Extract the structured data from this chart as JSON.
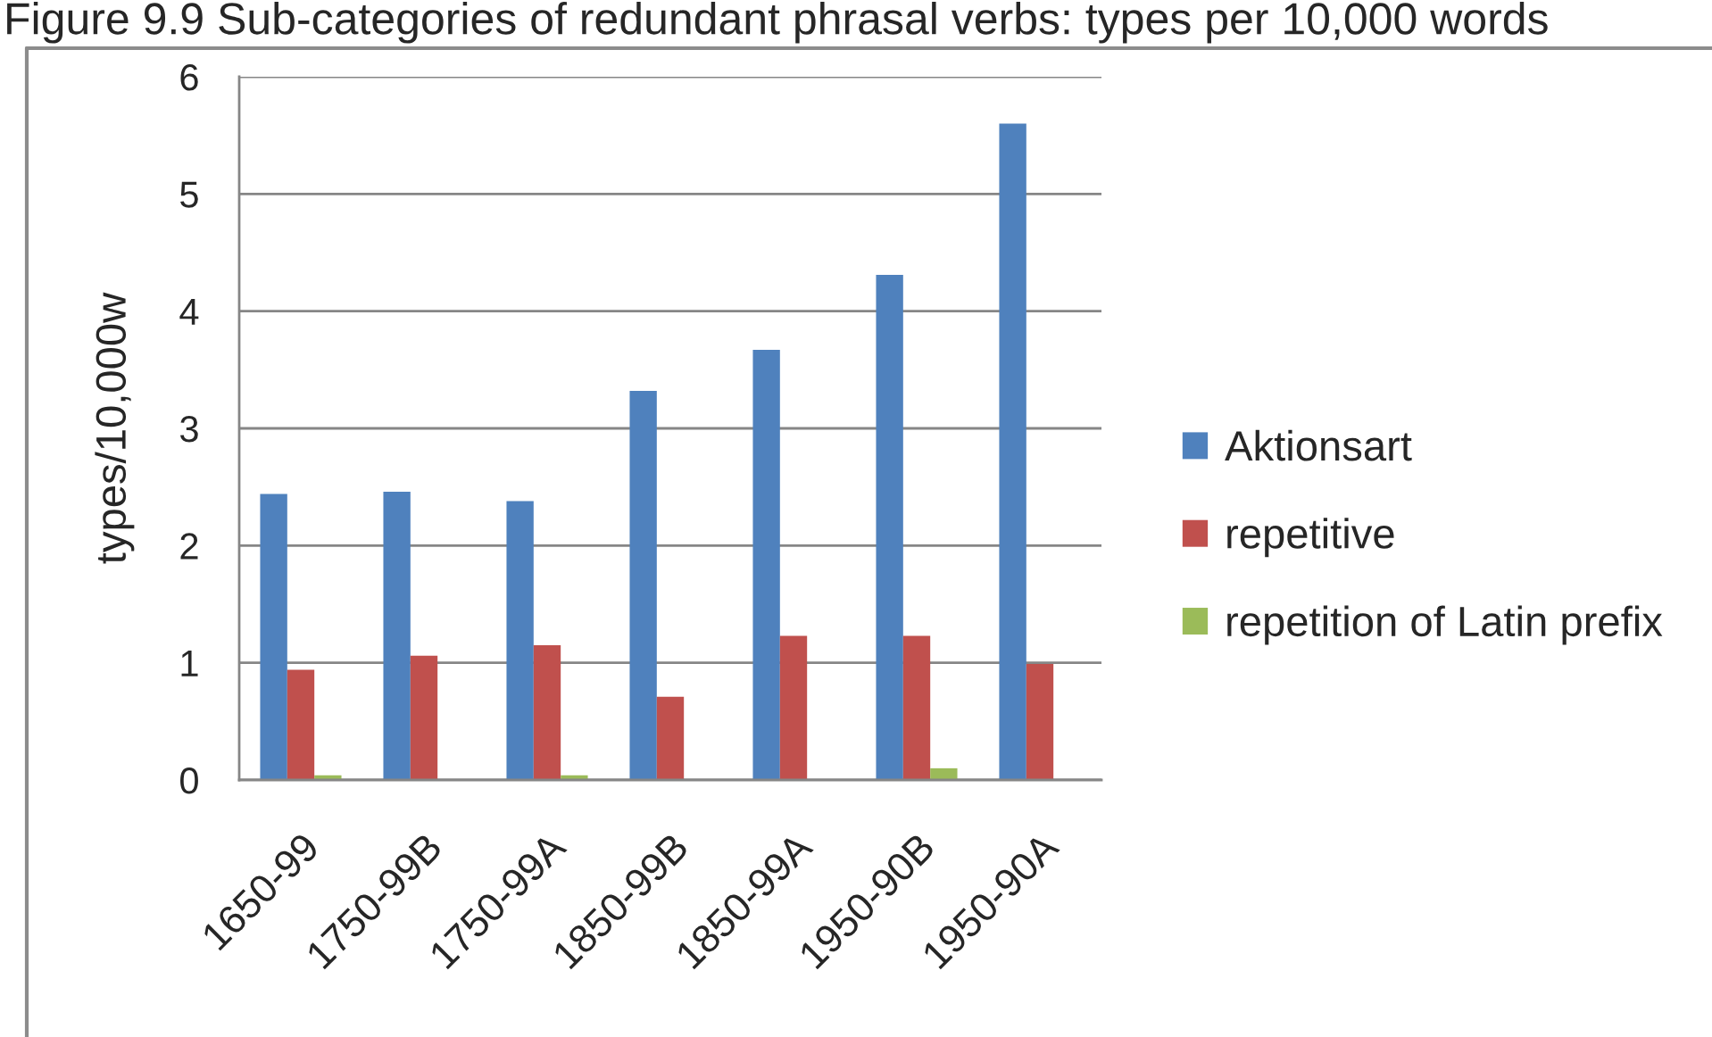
{
  "chart_data": {
    "type": "bar",
    "title": "Figure 9.9 Sub-categories of redundant phrasal verbs: types per 10,000 words",
    "ylabel": "types/10,000w",
    "categories": [
      "1650-99",
      "1750-99B",
      "1750-99A",
      "1850-99B",
      "1850-99A",
      "1950-90B",
      "1950-90A"
    ],
    "series": [
      {
        "name": "Aktionsart",
        "color": "#4f81bd",
        "values": [
          2.44,
          2.46,
          2.38,
          3.32,
          3.67,
          4.31,
          5.6
        ]
      },
      {
        "name": "repetitive",
        "color": "#c0504d",
        "values": [
          0.94,
          1.06,
          1.15,
          0.71,
          1.23,
          1.23,
          0.99
        ]
      },
      {
        "name": "repetition of Latin prefix",
        "color": "#9bbb59",
        "values": [
          0.04,
          null,
          0.04,
          null,
          null,
          0.1,
          null
        ]
      }
    ],
    "ylim": [
      0,
      6
    ],
    "yticks": [
      0,
      1,
      2,
      3,
      4,
      5,
      6
    ],
    "grid": "y",
    "legend": "right"
  }
}
